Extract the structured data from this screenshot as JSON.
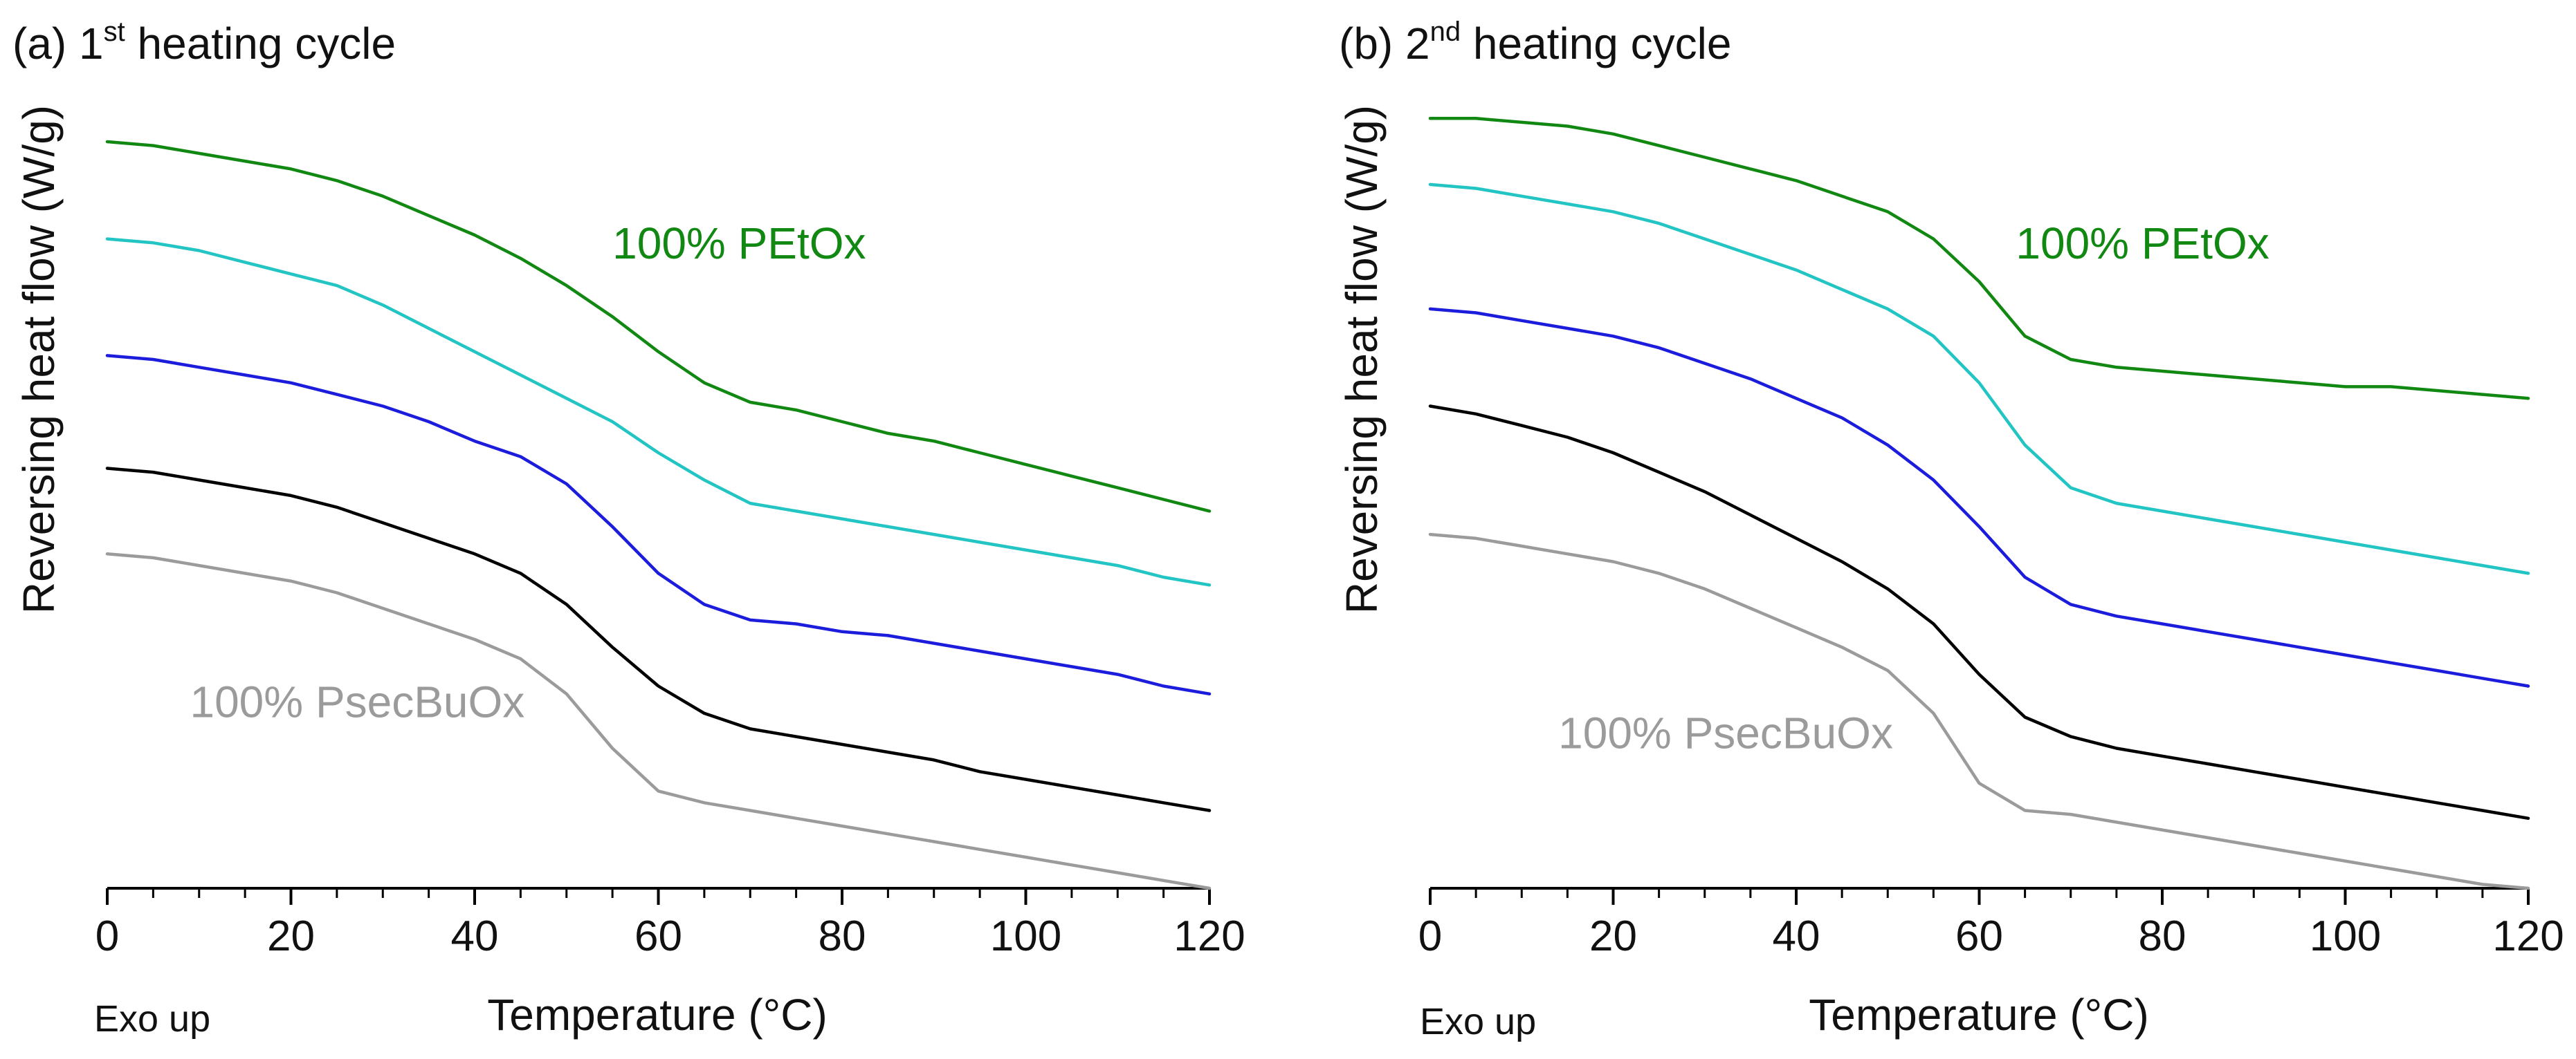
{
  "colors": {
    "green": "#118811",
    "cyan": "#22c4c4",
    "blue": "#1c1cdc",
    "black": "#000000",
    "gray": "#9b9b9b",
    "axis": "#000000"
  },
  "chart_data": [
    {
      "type": "line",
      "panel": "(a)",
      "title_prefix": "(a) 1",
      "title_sup": "st",
      "title_suffix": " heating cycle",
      "xlabel": "Temperature (°C)",
      "ylabel": "Reversing heat flow (W/g)",
      "corner_label": "Exo up",
      "xlim": [
        0,
        120
      ],
      "ylim": [
        0,
        100
      ],
      "x_ticks": [
        "0",
        "20",
        "40",
        "60",
        "80",
        "100",
        "120"
      ],
      "y_ticks_shown": false,
      "series": [
        {
          "color": "green",
          "x": [
            0,
            5,
            10,
            15,
            20,
            25,
            30,
            35,
            40,
            45,
            50,
            55,
            60,
            65,
            70,
            75,
            80,
            85,
            90,
            95,
            100,
            105,
            110,
            115,
            120
          ],
          "y": [
            96.0,
            95.5,
            94.5,
            93.5,
            92.5,
            91.0,
            89.0,
            86.5,
            84.0,
            81.0,
            77.5,
            73.5,
            69.0,
            65.0,
            62.5,
            61.5,
            60.0,
            58.5,
            57.5,
            56.0,
            54.5,
            53.0,
            51.5,
            50.0,
            48.5
          ]
        },
        {
          "color": "cyan",
          "x": [
            0,
            5,
            10,
            15,
            20,
            25,
            30,
            35,
            40,
            45,
            50,
            55,
            60,
            65,
            70,
            75,
            80,
            85,
            90,
            95,
            100,
            105,
            110,
            115,
            120
          ],
          "y": [
            83.5,
            83.0,
            82.0,
            80.5,
            79.0,
            77.5,
            75.0,
            72.0,
            69.0,
            66.0,
            63.0,
            60.0,
            56.0,
            52.5,
            49.5,
            48.5,
            47.5,
            46.5,
            45.5,
            44.5,
            43.5,
            42.5,
            41.5,
            40.0,
            39.0
          ]
        },
        {
          "color": "blue",
          "x": [
            0,
            5,
            10,
            15,
            20,
            25,
            30,
            35,
            40,
            45,
            50,
            55,
            60,
            65,
            70,
            75,
            80,
            85,
            90,
            95,
            100,
            105,
            110,
            115,
            120
          ],
          "y": [
            68.5,
            68.0,
            67.0,
            66.0,
            65.0,
            63.5,
            62.0,
            60.0,
            57.5,
            55.5,
            52.0,
            46.5,
            40.5,
            36.5,
            34.5,
            34.0,
            33.0,
            32.5,
            31.5,
            30.5,
            29.5,
            28.5,
            27.5,
            26.0,
            25.0
          ]
        },
        {
          "color": "black",
          "x": [
            0,
            5,
            10,
            15,
            20,
            25,
            30,
            35,
            40,
            45,
            50,
            55,
            60,
            65,
            70,
            75,
            80,
            85,
            90,
            95,
            100,
            105,
            110,
            115,
            120
          ],
          "y": [
            54.0,
            53.5,
            52.5,
            51.5,
            50.5,
            49.0,
            47.0,
            45.0,
            43.0,
            40.5,
            36.5,
            31.0,
            26.0,
            22.5,
            20.5,
            19.5,
            18.5,
            17.5,
            16.5,
            15.0,
            14.0,
            13.0,
            12.0,
            11.0,
            10.0
          ]
        },
        {
          "color": "gray",
          "x": [
            0,
            5,
            10,
            15,
            20,
            25,
            30,
            35,
            40,
            45,
            50,
            55,
            60,
            65,
            70,
            75,
            80,
            85,
            90,
            95,
            100,
            105,
            110,
            115,
            120
          ],
          "y": [
            43.0,
            42.5,
            41.5,
            40.5,
            39.5,
            38.0,
            36.0,
            34.0,
            32.0,
            29.5,
            25.0,
            18.0,
            12.5,
            11.0,
            10.0,
            9.0,
            8.0,
            7.0,
            6.0,
            5.0,
            4.0,
            3.0,
            2.0,
            1.0,
            0.0
          ]
        }
      ],
      "annotations": [
        {
          "text": "100% PEtOx",
          "color": "green",
          "x": 55,
          "y": 81
        },
        {
          "text": "100% PsecBuOx",
          "color": "gray",
          "x": 9,
          "y": 22
        }
      ]
    },
    {
      "type": "line",
      "panel": "(b)",
      "title_prefix": "(b) 2",
      "title_sup": "nd",
      "title_suffix": " heating cycle",
      "xlabel": "Temperature (°C)",
      "ylabel": "Reversing heat flow (W/g)",
      "corner_label": "Exo up",
      "xlim": [
        0,
        120
      ],
      "ylim": [
        0,
        100
      ],
      "x_ticks": [
        "0",
        "20",
        "40",
        "60",
        "80",
        "100",
        "120"
      ],
      "y_ticks_shown": false,
      "series": [
        {
          "color": "green",
          "x": [
            0,
            5,
            10,
            15,
            20,
            25,
            30,
            35,
            40,
            45,
            50,
            55,
            60,
            65,
            70,
            75,
            80,
            85,
            90,
            95,
            100,
            105,
            110,
            115,
            120
          ],
          "y": [
            99.0,
            99.0,
            98.5,
            98.0,
            97.0,
            95.5,
            94.0,
            92.5,
            91.0,
            89.0,
            87.0,
            83.5,
            78.0,
            71.0,
            68.0,
            67.0,
            66.5,
            66.0,
            65.5,
            65.0,
            64.5,
            64.5,
            64.0,
            63.5,
            63.0
          ]
        },
        {
          "color": "cyan",
          "x": [
            0,
            5,
            10,
            15,
            20,
            25,
            30,
            35,
            40,
            45,
            50,
            55,
            60,
            65,
            70,
            75,
            80,
            85,
            90,
            95,
            100,
            105,
            110,
            115,
            120
          ],
          "y": [
            90.5,
            90.0,
            89.0,
            88.0,
            87.0,
            85.5,
            83.5,
            81.5,
            79.5,
            77.0,
            74.5,
            71.0,
            65.0,
            57.0,
            51.5,
            49.5,
            48.5,
            47.5,
            46.5,
            45.5,
            44.5,
            43.5,
            42.5,
            41.5,
            40.5
          ]
        },
        {
          "color": "blue",
          "x": [
            0,
            5,
            10,
            15,
            20,
            25,
            30,
            35,
            40,
            45,
            50,
            55,
            60,
            65,
            70,
            75,
            80,
            85,
            90,
            95,
            100,
            105,
            110,
            115,
            120
          ],
          "y": [
            74.5,
            74.0,
            73.0,
            72.0,
            71.0,
            69.5,
            67.5,
            65.5,
            63.0,
            60.5,
            57.0,
            52.5,
            46.5,
            40.0,
            36.5,
            35.0,
            34.0,
            33.0,
            32.0,
            31.0,
            30.0,
            29.0,
            28.0,
            27.0,
            26.0
          ]
        },
        {
          "color": "black",
          "x": [
            0,
            5,
            10,
            15,
            20,
            25,
            30,
            35,
            40,
            45,
            50,
            55,
            60,
            65,
            70,
            75,
            80,
            85,
            90,
            95,
            100,
            105,
            110,
            115,
            120
          ],
          "y": [
            62.0,
            61.0,
            59.5,
            58.0,
            56.0,
            53.5,
            51.0,
            48.0,
            45.0,
            42.0,
            38.5,
            34.0,
            27.5,
            22.0,
            19.5,
            18.0,
            17.0,
            16.0,
            15.0,
            14.0,
            13.0,
            12.0,
            11.0,
            10.0,
            9.0
          ]
        },
        {
          "color": "gray",
          "x": [
            0,
            5,
            10,
            15,
            20,
            25,
            30,
            35,
            40,
            45,
            50,
            55,
            60,
            65,
            70,
            75,
            80,
            85,
            90,
            95,
            100,
            105,
            110,
            115,
            120
          ],
          "y": [
            45.5,
            45.0,
            44.0,
            43.0,
            42.0,
            40.5,
            38.5,
            36.0,
            33.5,
            31.0,
            28.0,
            22.5,
            13.5,
            10.0,
            9.5,
            8.5,
            7.5,
            6.5,
            5.5,
            4.5,
            3.5,
            2.5,
            1.5,
            0.5,
            0.0
          ]
        }
      ],
      "annotations": [
        {
          "text": "100% PEtOx",
          "color": "green",
          "x": 64,
          "y": 81
        },
        {
          "text": "100% PsecBuOx",
          "color": "gray",
          "x": 14,
          "y": 18
        }
      ]
    }
  ]
}
